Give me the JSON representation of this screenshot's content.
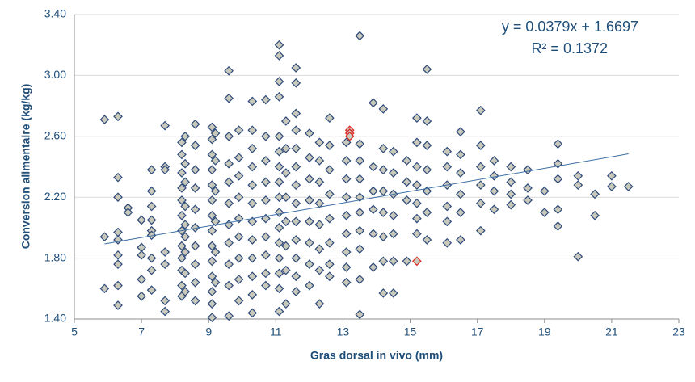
{
  "chart_data": {
    "type": "scatter",
    "x_label": "Gras dorsal in vivo (mm)",
    "y_label": "Conversion alimentaire (kg/kg)",
    "annotations": [
      "y = 0.0379x + 1.6697",
      "R² = 0.1372"
    ],
    "xlim": [
      5,
      23
    ],
    "xticks": [
      5,
      7,
      9,
      11,
      13,
      15,
      17,
      19,
      21,
      23
    ],
    "ylim": [
      1.4,
      3.4
    ],
    "yticks": [
      {
        "value": 1.4,
        "label": "1.40"
      },
      {
        "value": 1.8,
        "label": "1.80"
      },
      {
        "value": 2.2,
        "label": "2.20"
      },
      {
        "value": 2.6,
        "label": "2.60"
      },
      {
        "value": 3.0,
        "label": "3.00"
      },
      {
        "value": 3.4,
        "label": "3.40"
      }
    ],
    "grid": true,
    "series": [
      {
        "color": "#c9c9bb",
        "stroke": "#2e4a7a",
        "x": [
          5.9,
          5.9,
          5.9,
          6.3,
          6.3,
          6.3,
          6.3,
          6.3,
          6.3,
          6.3,
          6.3,
          6.3,
          6.6,
          6.6,
          7.0,
          7.0,
          7.0,
          7.0,
          7.0,
          7.3,
          7.3,
          7.3,
          7.3,
          7.3,
          7.3,
          7.3,
          7.3,
          7.3,
          7.7,
          7.7,
          7.7,
          7.7,
          7.7,
          7.7,
          7.7,
          8.2,
          8.2,
          8.2,
          8.2,
          8.2,
          8.2,
          8.2,
          8.2,
          8.2,
          8.2,
          8.2,
          8.2,
          8.3,
          8.3,
          8.3,
          8.3,
          8.3,
          8.3,
          8.3,
          8.3,
          8.3,
          8.6,
          8.6,
          8.6,
          8.6,
          8.6,
          8.6,
          8.6,
          8.6,
          8.6,
          8.6,
          9.1,
          9.1,
          9.1,
          9.1,
          9.1,
          9.1,
          9.1,
          9.1,
          9.1,
          9.1,
          9.1,
          9.1,
          9.1,
          9.1,
          9.2,
          9.2,
          9.2,
          9.2,
          9.2,
          9.2,
          9.6,
          9.6,
          9.6,
          9.6,
          9.6,
          9.6,
          9.6,
          9.6,
          9.6,
          9.6,
          9.6,
          9.9,
          9.9,
          9.9,
          9.9,
          9.9,
          9.9,
          9.9,
          9.9,
          9.9,
          10.3,
          10.3,
          10.3,
          10.3,
          10.3,
          10.3,
          10.3,
          10.3,
          10.3,
          10.3,
          10.3,
          10.3,
          10.7,
          10.7,
          10.7,
          10.7,
          10.7,
          10.7,
          10.7,
          10.7,
          10.7,
          10.7,
          11.1,
          11.1,
          11.1,
          11.1,
          11.1,
          11.1,
          11.1,
          11.1,
          11.1,
          11.1,
          11.1,
          11.1,
          11.1,
          11.1,
          11.1,
          11.1,
          11.3,
          11.3,
          11.3,
          11.3,
          11.3,
          11.3,
          11.3,
          11.3,
          11.6,
          11.6,
          11.6,
          11.6,
          11.6,
          11.6,
          11.6,
          11.6,
          11.6,
          11.6,
          11.6,
          11.6,
          11.6,
          12.0,
          12.0,
          12.0,
          12.0,
          12.0,
          12.0,
          12.0,
          12.0,
          12.3,
          12.3,
          12.3,
          12.3,
          12.3,
          12.3,
          12.3,
          12.3,
          12.6,
          12.6,
          12.6,
          12.6,
          12.6,
          12.6,
          12.6,
          12.6,
          13.1,
          13.1,
          13.1,
          13.1,
          13.1,
          13.1,
          13.1,
          13.1,
          13.1,
          13.5,
          13.5,
          13.5,
          13.5,
          13.5,
          13.5,
          13.5,
          13.5,
          13.5,
          13.5,
          13.9,
          13.9,
          13.9,
          13.9,
          13.9,
          13.9,
          14.2,
          14.2,
          14.2,
          14.2,
          14.2,
          14.2,
          14.2,
          14.2,
          14.5,
          14.5,
          14.5,
          14.5,
          14.5,
          14.5,
          14.5,
          14.9,
          14.9,
          14.9,
          14.9,
          15.2,
          15.2,
          15.2,
          15.2,
          15.2,
          15.2,
          15.2,
          15.5,
          15.5,
          15.5,
          15.5,
          15.5,
          15.5,
          15.5,
          16.1,
          16.1,
          16.1,
          16.1,
          16.1,
          16.1,
          16.5,
          16.5,
          16.5,
          16.5,
          16.5,
          16.5,
          17.1,
          17.1,
          17.1,
          17.1,
          17.1,
          17.1,
          17.5,
          17.5,
          17.5,
          17.5,
          18.0,
          18.0,
          18.0,
          18.0,
          18.5,
          18.5,
          18.5,
          19.0,
          19.0,
          19.4,
          19.4,
          19.4,
          19.4,
          19.4,
          20.0,
          20.0,
          20.0,
          20.5,
          20.5,
          21.0,
          21.0,
          21.5
        ],
        "values": [
          2.71,
          1.94,
          1.6,
          2.73,
          2.33,
          2.2,
          1.97,
          1.92,
          1.82,
          1.76,
          1.62,
          1.49,
          2.13,
          2.1,
          2.05,
          1.87,
          1.82,
          1.66,
          1.55,
          2.38,
          2.24,
          2.14,
          2.05,
          1.98,
          1.8,
          1.72,
          1.59,
          1.95,
          2.67,
          2.4,
          2.38,
          1.84,
          1.76,
          1.52,
          1.45,
          2.56,
          2.48,
          2.36,
          2.26,
          2.18,
          2.08,
          1.98,
          1.88,
          1.8,
          1.72,
          1.62,
          1.55,
          2.6,
          2.42,
          2.3,
          2.14,
          2.02,
          1.94,
          1.84,
          1.7,
          1.58,
          2.68,
          2.54,
          2.38,
          2.26,
          2.12,
          2.0,
          1.88,
          1.76,
          1.64,
          1.52,
          2.66,
          2.58,
          2.48,
          2.38,
          2.28,
          2.18,
          2.08,
          1.98,
          1.88,
          1.78,
          1.68,
          1.58,
          1.5,
          1.41,
          2.62,
          2.44,
          2.24,
          2.04,
          1.84,
          1.64,
          3.03,
          2.85,
          2.6,
          2.42,
          2.3,
          2.16,
          2.02,
          1.9,
          1.76,
          1.62,
          1.42,
          2.64,
          2.46,
          2.34,
          2.2,
          2.06,
          1.94,
          1.8,
          1.66,
          1.52,
          2.83,
          2.64,
          2.52,
          2.4,
          2.28,
          2.16,
          2.04,
          1.92,
          1.8,
          1.68,
          1.56,
          1.44,
          2.84,
          2.6,
          2.44,
          2.3,
          2.18,
          2.06,
          1.94,
          1.82,
          1.7,
          1.62,
          3.2,
          3.13,
          2.96,
          2.86,
          2.6,
          2.5,
          2.4,
          2.3,
          2.2,
          2.1,
          2.0,
          1.9,
          1.8,
          1.7,
          1.6,
          1.45,
          2.7,
          2.52,
          2.36,
          2.2,
          2.04,
          1.88,
          1.72,
          1.5,
          3.05,
          2.95,
          2.75,
          2.64,
          2.52,
          2.4,
          2.28,
          2.16,
          2.04,
          1.92,
          1.8,
          1.68,
          1.58,
          2.62,
          2.46,
          2.32,
          2.18,
          2.04,
          1.9,
          1.76,
          1.62,
          2.56,
          2.44,
          2.3,
          2.16,
          2.02,
          1.86,
          1.72,
          1.5,
          2.72,
          2.54,
          2.38,
          2.22,
          2.06,
          1.9,
          1.76,
          1.68,
          2.56,
          2.44,
          2.32,
          2.2,
          2.08,
          1.96,
          1.84,
          1.74,
          1.64,
          3.26,
          2.55,
          2.44,
          2.32,
          2.2,
          2.1,
          1.98,
          1.86,
          1.66,
          1.43,
          2.82,
          2.4,
          2.24,
          2.12,
          1.96,
          1.74,
          2.78,
          2.52,
          2.38,
          2.24,
          2.1,
          1.94,
          1.78,
          1.57,
          2.5,
          2.36,
          2.22,
          2.08,
          1.96,
          1.78,
          1.57,
          2.44,
          2.3,
          2.18,
          1.78,
          2.72,
          2.56,
          2.4,
          2.28,
          2.16,
          2.06,
          1.96,
          3.04,
          2.7,
          2.54,
          2.38,
          2.24,
          2.1,
          1.92,
          2.5,
          2.4,
          2.28,
          2.14,
          2.04,
          1.9,
          2.63,
          2.48,
          2.36,
          2.22,
          2.1,
          1.92,
          2.77,
          2.54,
          2.4,
          2.28,
          2.16,
          1.98,
          2.44,
          2.34,
          2.24,
          2.12,
          2.4,
          2.3,
          2.22,
          2.15,
          2.38,
          2.26,
          2.18,
          2.24,
          2.1,
          2.55,
          2.42,
          2.32,
          2.12,
          2.01,
          2.34,
          2.28,
          1.81,
          2.22,
          2.08,
          2.34,
          2.27,
          2.27
        ]
      },
      {
        "color": "#c9c9bb",
        "stroke": "#e0201b",
        "x": [
          13.2,
          13.2,
          13.2,
          15.2
        ],
        "values": [
          2.64,
          2.62,
          2.6,
          1.78
        ]
      }
    ],
    "trendline": {
      "color": "#3b6ea5",
      "x": [
        5.9,
        21.5
      ],
      "values": [
        1.8933,
        2.4846
      ]
    }
  }
}
